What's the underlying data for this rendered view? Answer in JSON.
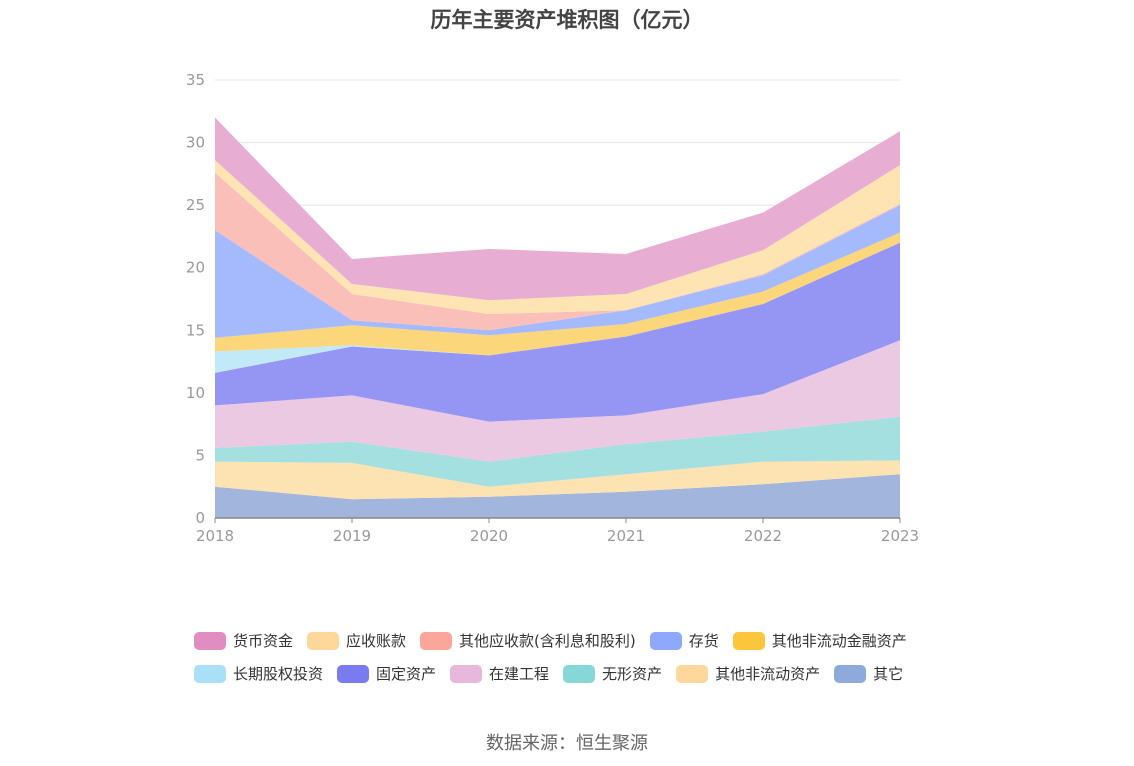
{
  "chart_data": {
    "type": "area",
    "stacked": true,
    "title": "历年主要资产堆积图（亿元）",
    "x": [
      "2018",
      "2019",
      "2020",
      "2021",
      "2022",
      "2023"
    ],
    "ylim": [
      0,
      35
    ],
    "yticks": [
      0,
      5,
      10,
      15,
      20,
      25,
      30,
      35
    ],
    "grid": true,
    "legend_position": "bottom",
    "series": [
      {
        "name": "其它",
        "color": "#9db2db",
        "values": [
          2.5,
          1.5,
          1.7,
          2.1,
          2.7,
          3.5
        ]
      },
      {
        "name": "其他非流动资产",
        "color": "#fde0ae",
        "values": [
          2.0,
          2.9,
          0.8,
          1.4,
          1.8,
          1.1
        ]
      },
      {
        "name": "无形资产",
        "color": "#9fdede",
        "values": [
          1.1,
          1.7,
          2.0,
          2.4,
          2.4,
          3.5
        ]
      },
      {
        "name": "在建工程",
        "color": "#ebc6e1",
        "values": [
          3.4,
          3.7,
          3.2,
          2.3,
          3.0,
          6.1
        ]
      },
      {
        "name": "固定资产",
        "color": "#8f8ff3",
        "values": [
          2.6,
          3.9,
          5.3,
          6.3,
          7.2,
          7.8
        ]
      },
      {
        "name": "长期股权投资",
        "color": "#bfe8f7",
        "values": [
          1.7,
          0.1,
          0.0,
          0.0,
          0.0,
          0.0
        ]
      },
      {
        "name": "其他非流动金融资产",
        "color": "#fcd474",
        "values": [
          1.1,
          1.6,
          1.6,
          1.0,
          1.0,
          0.8
        ]
      },
      {
        "name": "存货",
        "color": "#a0b6fc",
        "values": [
          8.6,
          0.4,
          0.4,
          1.1,
          1.3,
          2.2
        ]
      },
      {
        "name": "其他应收款(含利息和股利)",
        "color": "#fbbcb6",
        "values": [
          4.6,
          2.1,
          1.3,
          0.0,
          0.1,
          0.1
        ]
      },
      {
        "name": "应收账款",
        "color": "#fde3ae",
        "values": [
          1.0,
          0.8,
          1.1,
          1.3,
          1.9,
          3.1
        ]
      },
      {
        "name": "货币资金",
        "color": "#e7a9d1",
        "values": [
          3.4,
          2.0,
          4.1,
          3.2,
          3.0,
          2.7
        ]
      }
    ]
  },
  "legend": {
    "row1": [
      {
        "label": "货币资金",
        "color": "#e08dc2"
      },
      {
        "label": "应收账款",
        "color": "#fdd89a"
      },
      {
        "label": "其他应收款(含利息和股利)",
        "color": "#fba59b"
      },
      {
        "label": "存货",
        "color": "#8ea8fb"
      },
      {
        "label": "其他非流动金融资产",
        "color": "#fcc63c"
      }
    ],
    "row2": [
      {
        "label": "长期股权投资",
        "color": "#a9dff7"
      },
      {
        "label": "固定资产",
        "color": "#7b7bf0"
      },
      {
        "label": "在建工程",
        "color": "#e8b8dc"
      },
      {
        "label": "无形资产",
        "color": "#86d7d7"
      },
      {
        "label": "其他非流动资产",
        "color": "#fdd89a"
      },
      {
        "label": "其它",
        "color": "#8eaadb"
      }
    ]
  },
  "source": "数据来源：恒生聚源"
}
